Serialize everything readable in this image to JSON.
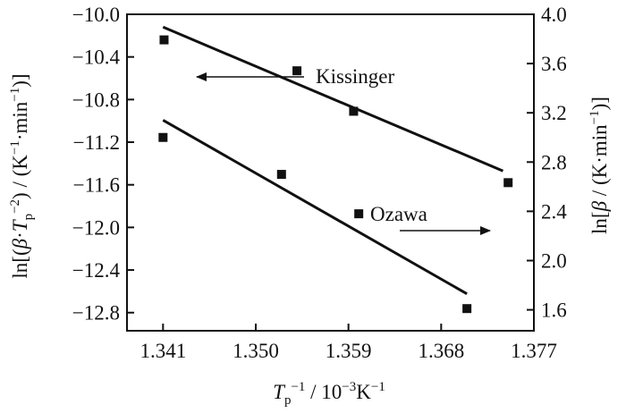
{
  "chart_data": {
    "type": "scatter",
    "x_axis": {
      "label": "Tp−1 / 10−3K−1",
      "label_parts": {
        "main": "T",
        "sub": "p",
        "sup": "−1",
        "rest": " / 10",
        "unit_sup": "−3",
        "unit": "K",
        "unit_sup2": "−1"
      },
      "ticks": [
        "1.341",
        "1.350",
        "1.359",
        "1.368",
        "1.377"
      ],
      "tick_values": [
        1.341,
        1.35,
        1.359,
        1.368,
        1.377
      ],
      "range": [
        1.3375,
        1.377
      ]
    },
    "y_left": {
      "label": "ln[(β·Tp−2) / (K−1·min−1)]",
      "ticks": [
        "−10.0",
        "−10.4",
        "−10.8",
        "−11.2",
        "−11.6",
        "−12.0",
        "−12.4",
        "−12.8"
      ],
      "tick_values": [
        -10.0,
        -10.4,
        -10.8,
        -11.2,
        -11.6,
        -12.0,
        -12.4,
        -12.8
      ],
      "range": [
        -12.97,
        -10.0
      ]
    },
    "y_right": {
      "label": "ln[β / (K·min−1)]",
      "ticks": [
        "4.0",
        "3.6",
        "3.2",
        "2.8",
        "2.4",
        "2.0",
        "1.6"
      ],
      "tick_values": [
        4.0,
        3.6,
        3.2,
        2.8,
        2.4,
        2.0,
        1.6
      ],
      "range": [
        1.43,
        4.0
      ]
    },
    "series": [
      {
        "name": "Kissinger",
        "axis": "left",
        "arrow": "left",
        "x": [
          1.3411,
          1.354,
          1.3595,
          1.3745
        ],
        "y": [
          -10.24,
          -10.53,
          -10.91,
          -11.58
        ],
        "fit_line": {
          "x": [
            1.341,
            1.374
          ],
          "y": [
            -10.12,
            -11.47
          ]
        }
      },
      {
        "name": "Ozawa",
        "axis": "right",
        "arrow": "right",
        "x": [
          1.341,
          1.3525,
          1.36,
          1.3705
        ],
        "y": [
          3.0,
          2.7,
          2.38,
          1.61
        ],
        "fit_line": {
          "x": [
            1.341,
            1.3705
          ],
          "y": [
            3.14,
            1.73
          ]
        }
      }
    ],
    "grid": false,
    "legend": "none"
  }
}
